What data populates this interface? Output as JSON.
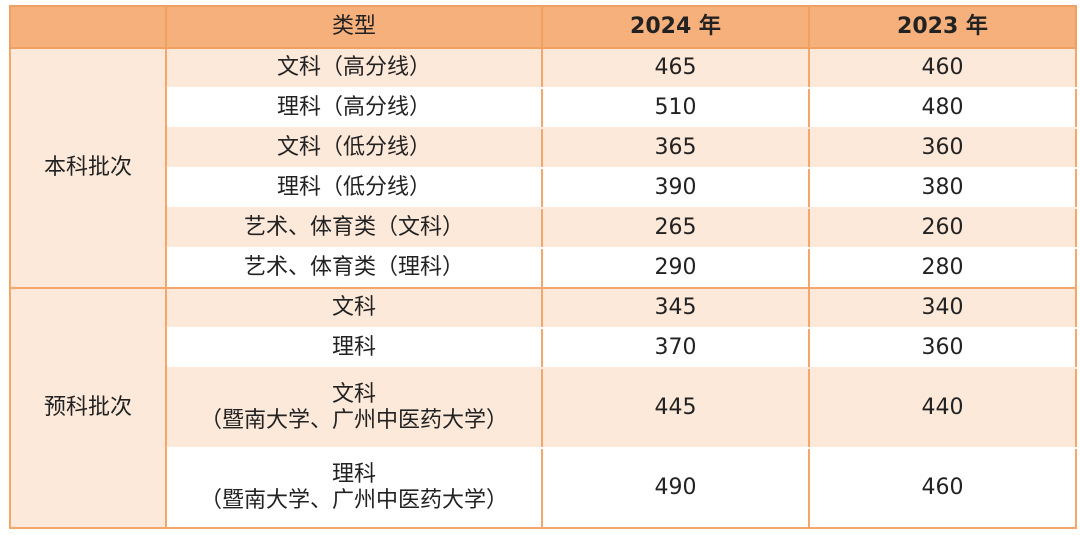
{
  "header": {
    "type_label": "类型",
    "year_2024": "2024 年",
    "year_2023": "2023 年"
  },
  "groups": [
    {
      "name": "本科批次",
      "rows": [
        {
          "type": "文科（高分线）",
          "v2024": "465",
          "v2023": "460"
        },
        {
          "type": "理科（高分线）",
          "v2024": "510",
          "v2023": "480"
        },
        {
          "type": "文科（低分线）",
          "v2024": "365",
          "v2023": "360"
        },
        {
          "type": "理科（低分线）",
          "v2024": "390",
          "v2023": "380"
        },
        {
          "type": "艺术、体育类（文科）",
          "v2024": "265",
          "v2023": "260"
        },
        {
          "type": "艺术、体育类（理科）",
          "v2024": "290",
          "v2023": "280"
        }
      ]
    },
    {
      "name": "预科批次",
      "rows": [
        {
          "type": "文科",
          "v2024": "345",
          "v2023": "340"
        },
        {
          "type": "理科",
          "v2024": "370",
          "v2023": "360"
        },
        {
          "type": "文科",
          "type_line2": "（暨南大学、广州中医药大学）",
          "v2024": "445",
          "v2023": "440"
        },
        {
          "type": "理科",
          "type_line2": "（暨南大学、广州中医药大学）",
          "v2024": "490",
          "v2023": "460"
        }
      ]
    }
  ]
}
